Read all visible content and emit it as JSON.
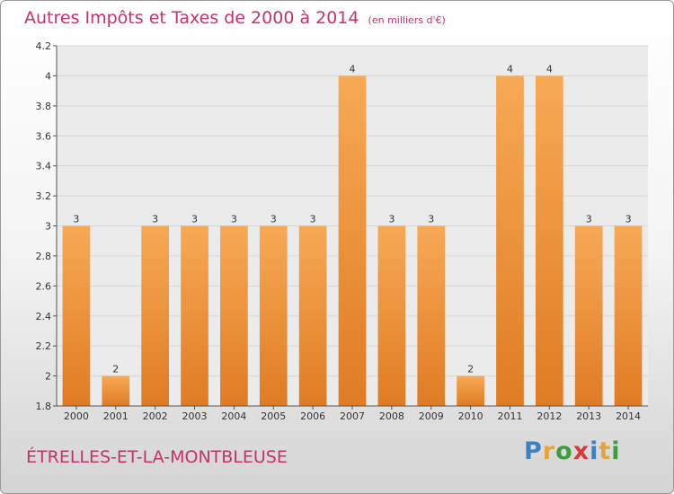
{
  "header": {
    "title": "Autres Impôts et Taxes de 2000 à 2014",
    "unit": "(en milliers d'€)"
  },
  "footer": {
    "commune": "ÉTRELLES-ET-LA-MONTBLEUSE",
    "brand": "Proxiti",
    "brand_letters": [
      {
        "char": "P",
        "color": "#3b7fc4"
      },
      {
        "char": "r",
        "color": "#e8a23a"
      },
      {
        "char": "o",
        "color": "#3b9e3b"
      },
      {
        "char": "x",
        "color": "#d63a3a"
      },
      {
        "char": "i",
        "color": "#3b7fc4"
      },
      {
        "char": "t",
        "color": "#e8a23a"
      },
      {
        "char": "i",
        "color": "#3b9e3b"
      }
    ]
  },
  "colors": {
    "title": "#c8306e",
    "bar_light": "#f7a955",
    "bar_dark": "#e07b24",
    "plot_bg": "#ebebeb",
    "grid": "#d6d6d6"
  },
  "chart_data": {
    "type": "bar",
    "categories": [
      "2000",
      "2001",
      "2002",
      "2003",
      "2004",
      "2005",
      "2006",
      "2007",
      "2008",
      "2009",
      "2010",
      "2011",
      "2012",
      "2013",
      "2014"
    ],
    "values": [
      3,
      2,
      3,
      3,
      3,
      3,
      3,
      4,
      3,
      3,
      2,
      4,
      4,
      3,
      3
    ],
    "data_labels": [
      "3",
      "2",
      "3",
      "3",
      "3",
      "3",
      "3",
      "4",
      "3",
      "3",
      "2",
      "4",
      "4",
      "3",
      "3"
    ],
    "ylim": [
      1.8,
      4.2
    ],
    "yticks": [
      1.8,
      2,
      2.2,
      2.4,
      2.6,
      2.8,
      3,
      3.2,
      3.4,
      3.6,
      3.8,
      4,
      4.2
    ],
    "ytick_labels": [
      "1.8",
      "2",
      "2.2",
      "2.4",
      "2.6",
      "2.8",
      "3",
      "3.2",
      "3.4",
      "3.6",
      "3.8",
      "4",
      "4.2"
    ],
    "grid": true,
    "legend": "none"
  }
}
